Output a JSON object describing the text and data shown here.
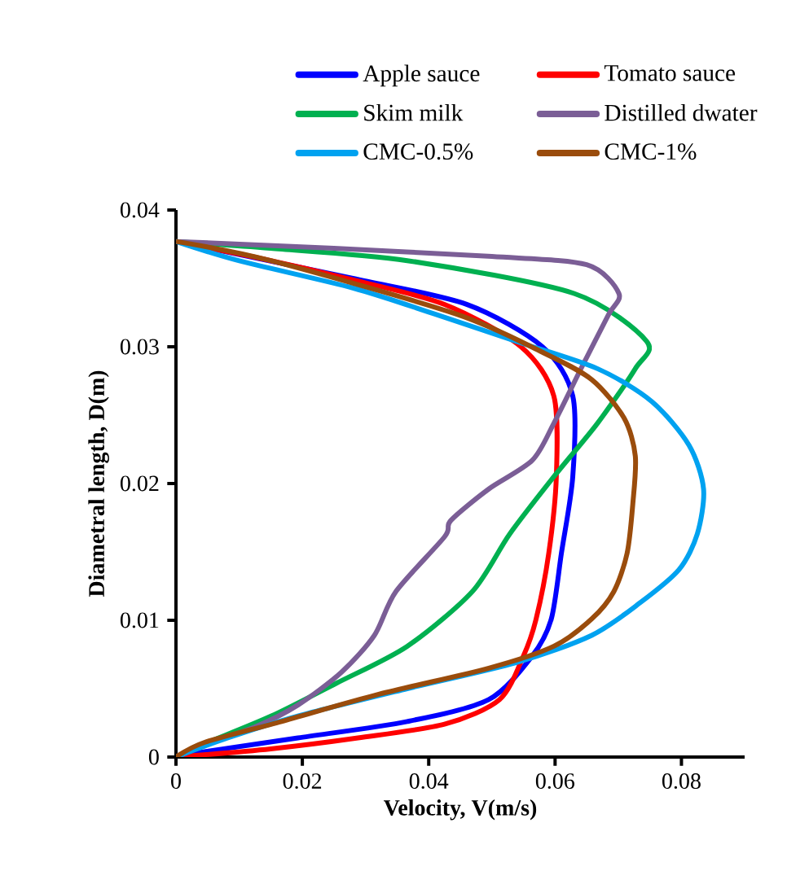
{
  "chart_data": {
    "type": "line",
    "xlabel": "Velocity, V(m/s)",
    "ylabel": "Diametral length, D(m)",
    "xlim": [
      0,
      0.09
    ],
    "ylim": [
      0,
      0.04
    ],
    "xticks": [
      0,
      0.02,
      0.04,
      0.06,
      0.08
    ],
    "yticks": [
      0,
      0.01,
      0.02,
      0.03,
      0.04
    ],
    "grid": false,
    "legend": "top",
    "marker": "none",
    "line_style": "solid",
    "series": [
      {
        "name": "Apple sauce",
        "color": "#0000ff",
        "x": [
          0,
          0.015,
          0.028,
          0.046,
          0.058,
          0.0628,
          0.0628,
          0.061,
          0.0594,
          0.0564,
          0.0495,
          0.0366,
          0.0193,
          0.0047,
          0
        ],
        "values": [
          0.0377,
          null,
          0.035,
          0.0331,
          0.03,
          0.0264,
          0.0205,
          0.0149,
          0.0101,
          0.0074,
          0.0042,
          0.0026,
          0.0014,
          0.0004,
          0
        ]
      },
      {
        "name": "Tomato sauce",
        "color": "#ff0000",
        "x": [
          0,
          0.014,
          0.027,
          0.0425,
          0.0546,
          0.0598,
          0.0602,
          0.059,
          0.057,
          0.055,
          0.0512,
          0.0425,
          0.0288,
          0.015,
          0
        ],
        "values": [
          0.0377,
          0.0364,
          0.035,
          0.0331,
          0.03,
          0.0264,
          0.0205,
          0.0149,
          0.0101,
          0.0074,
          0.0042,
          0.0024,
          0.0014,
          0.0006,
          0
        ]
      },
      {
        "name": "Skim milk",
        "color": "#00b050",
        "x": [
          0,
          0.015,
          0.0366,
          0.063,
          0.0745,
          0.0727,
          0.0667,
          0.0598,
          0.0528,
          0.0469,
          0.0366,
          0.0254,
          0.0151,
          0.0047,
          0
        ],
        "values": [
          0.0377,
          0.0372,
          0.0363,
          0.0339,
          0.0304,
          0.0284,
          0.0244,
          0.0205,
          0.0163,
          0.0121,
          0.0081,
          0.0054,
          0.003,
          0.001,
          0
        ]
      },
      {
        "name": "Distilled dwater",
        "color": "#7b5e96",
        "x": [
          0,
          0.025,
          0.05,
          0.065,
          0.0701,
          0.0684,
          0.0641,
          0.0598,
          0.0564,
          0.0495,
          0.0435,
          0.0425,
          0.0348,
          0.0314,
          0.0262,
          0.0193,
          0.0125,
          0.0027,
          0
        ],
        "values": [
          0.0377,
          0.0372,
          0.0366,
          0.036,
          0.0339,
          0.0323,
          0.0284,
          0.0244,
          0.0217,
          0.0196,
          0.0173,
          0.0161,
          0.0121,
          0.0089,
          0.0062,
          0.0038,
          0.0022,
          0.0006,
          0
        ]
      },
      {
        "name": "CMC-0.5%",
        "color": "#00a2f0",
        "x": [
          0,
          0.0099,
          0.028,
          0.0409,
          0.0538,
          0.0667,
          0.0753,
          0.0812,
          0.0835,
          0.0825,
          0.0796,
          0.0735,
          0.0658,
          0.0538,
          0.0366,
          0.0193,
          0.0082,
          0
        ],
        "values": [
          0.0377,
          0.0363,
          0.0343,
          0.0324,
          0.0304,
          0.0284,
          0.026,
          0.0228,
          0.0196,
          0.0163,
          0.0137,
          0.0113,
          0.0089,
          0.0069,
          0.005,
          0.003,
          0.0014,
          0
        ]
      },
      {
        "name": "CMC-1%",
        "color": "#9a4c0c",
        "x": [
          0,
          0.015,
          0.0443,
          0.058,
          0.0658,
          0.0709,
          0.0727,
          0.0723,
          0.0714,
          0.0693,
          0.0658,
          0.0598,
          0.0495,
          0.0322,
          0.0167,
          0.0047,
          0
        ],
        "values": [
          0.0377,
          0.0363,
          0.0324,
          0.0296,
          0.0276,
          0.0248,
          0.022,
          0.0185,
          0.0149,
          0.0121,
          0.0101,
          0.0081,
          0.0065,
          0.0046,
          0.0026,
          0.0011,
          0
        ]
      }
    ]
  }
}
